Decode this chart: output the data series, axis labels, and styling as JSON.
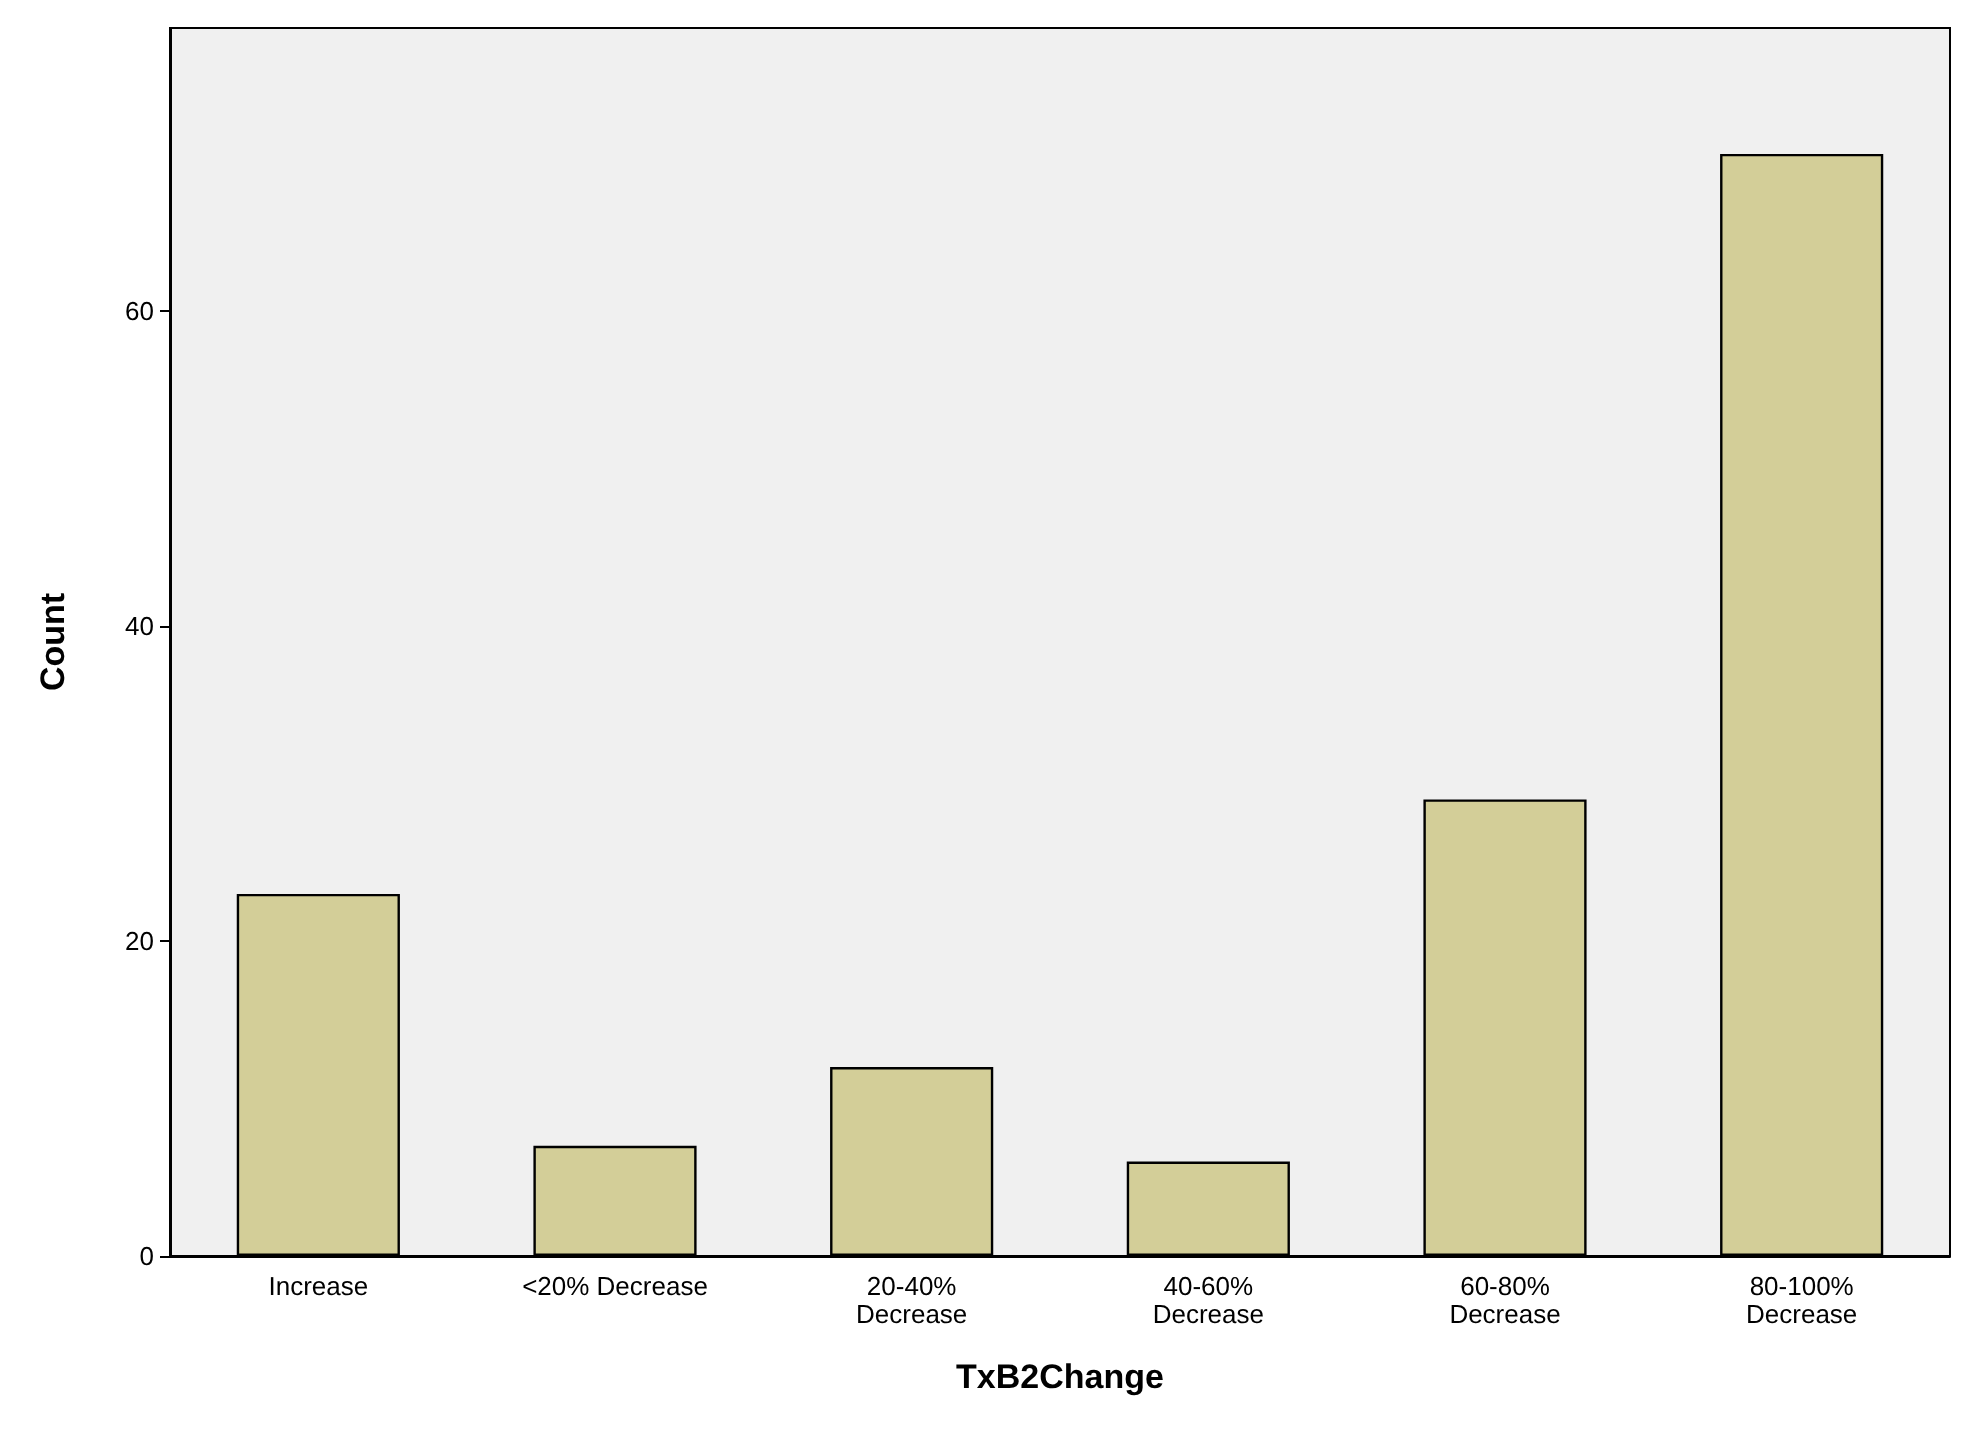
{
  "chart_data": {
    "type": "bar",
    "xlabel": "TxB2Change",
    "ylabel": "Count",
    "categories": [
      "Increase",
      "<20% Decrease",
      "20-40%\nDecrease",
      "40-60%\nDecrease",
      "60-80%\nDecrease",
      "80-100%\nDecrease"
    ],
    "values": [
      23,
      7,
      12,
      6,
      29,
      70
    ],
    "color": "#d3ce98",
    "ylim": [
      0,
      78
    ],
    "yticks": [
      0,
      20,
      40,
      60
    ],
    "grid": false
  }
}
